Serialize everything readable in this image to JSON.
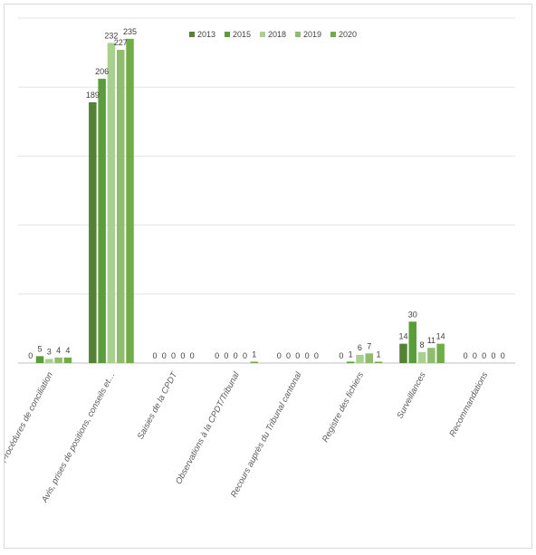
{
  "chart_data": {
    "type": "bar",
    "title": "",
    "xlabel": "",
    "ylabel": "",
    "ylim": [
      0,
      250
    ],
    "grid": true,
    "legend_position": "top-right",
    "categories": [
      "Procédures de conciliation",
      "Avis, prises de positions, conseils et…",
      "Saisies de la CPDT",
      "Observations à la CPDT/Tribunal",
      "Recours auprès du Tribunal cantonal",
      "Registre des fichiers",
      "Surveillances",
      "Recommandations"
    ],
    "series": [
      {
        "name": "2013",
        "color": "#548235",
        "values": [
          0,
          189,
          0,
          0,
          0,
          0,
          14,
          0
        ]
      },
      {
        "name": "2015",
        "color": "#5a9e3a",
        "values": [
          5,
          206,
          0,
          0,
          0,
          1,
          30,
          0
        ]
      },
      {
        "name": "2018",
        "color": "#a9d18e",
        "values": [
          3,
          232,
          0,
          0,
          0,
          6,
          8,
          0
        ]
      },
      {
        "name": "2019",
        "color": "#8fbc6e",
        "values": [
          4,
          227,
          0,
          0,
          0,
          7,
          11,
          0
        ]
      },
      {
        "name": "2020",
        "color": "#70ad47",
        "values": [
          4,
          235,
          0,
          1,
          0,
          1,
          14,
          0
        ]
      }
    ]
  }
}
